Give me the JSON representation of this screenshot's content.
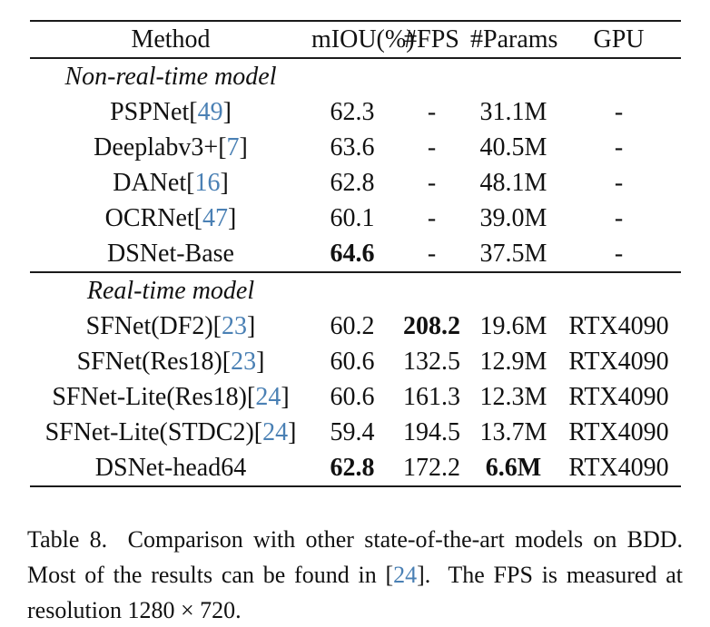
{
  "colors": {
    "citation": "#4a80b4",
    "text": "#111111",
    "rule": "#1b1b1b"
  },
  "table": {
    "headers": [
      "Method",
      "mIOU(%)",
      "#FPS",
      "#Params",
      "GPU"
    ],
    "sections": [
      {
        "label": "Non-real-time model",
        "rows": [
          {
            "m_pre": "PSPNet[",
            "m_cite": "49",
            "m_post": "]",
            "miou": "62.3",
            "fps": "-",
            "params": "31.1M",
            "gpu": "-"
          },
          {
            "m_pre": "Deeplabv3+[",
            "m_cite": "7",
            "m_post": "]",
            "miou": "63.6",
            "fps": "-",
            "params": "40.5M",
            "gpu": "-"
          },
          {
            "m_pre": "DANet[",
            "m_cite": "16",
            "m_post": "]",
            "miou": "62.8",
            "fps": "-",
            "params": "48.1M",
            "gpu": "-"
          },
          {
            "m_pre": "OCRNet[",
            "m_cite": "47",
            "m_post": "]",
            "miou": "60.1",
            "fps": "-",
            "params": "39.0M",
            "gpu": "-"
          },
          {
            "m_pre": "DSNet-Base",
            "m_cite": "",
            "m_post": "",
            "miou": "64.6",
            "fps": "-",
            "params": "37.5M",
            "gpu": "-"
          }
        ]
      },
      {
        "label": "Real-time model",
        "rows": [
          {
            "m_pre": "SFNet(DF2)[",
            "m_cite": "23",
            "m_post": "]",
            "miou": "60.2",
            "fps": "208.2",
            "params": "19.6M",
            "gpu": "RTX4090"
          },
          {
            "m_pre": "SFNet(Res18)[",
            "m_cite": "23",
            "m_post": "]",
            "miou": "60.6",
            "fps": "132.5",
            "params": "12.9M",
            "gpu": "RTX4090"
          },
          {
            "m_pre": "SFNet-Lite(Res18)[",
            "m_cite": "24",
            "m_post": "]",
            "miou": "60.6",
            "fps": "161.3",
            "params": "12.3M",
            "gpu": "RTX4090"
          },
          {
            "m_pre": "SFNet-Lite(STDC2)[",
            "m_cite": "24",
            "m_post": "]",
            "miou": "59.4",
            "fps": "194.5",
            "params": "13.7M",
            "gpu": "RTX4090"
          },
          {
            "m_pre": "DSNet-head64",
            "m_cite": "",
            "m_post": "",
            "miou": "62.8",
            "fps": "172.2",
            "params": "6.6M",
            "gpu": "RTX4090"
          }
        ]
      }
    ]
  },
  "caption": {
    "part1": "Table 8.  Comparison with other state-of-the-art models on BDD. Most of the results can be found in [",
    "cite": "24",
    "part2": "].  The FPS is measured at resolution 1280 × 720."
  }
}
